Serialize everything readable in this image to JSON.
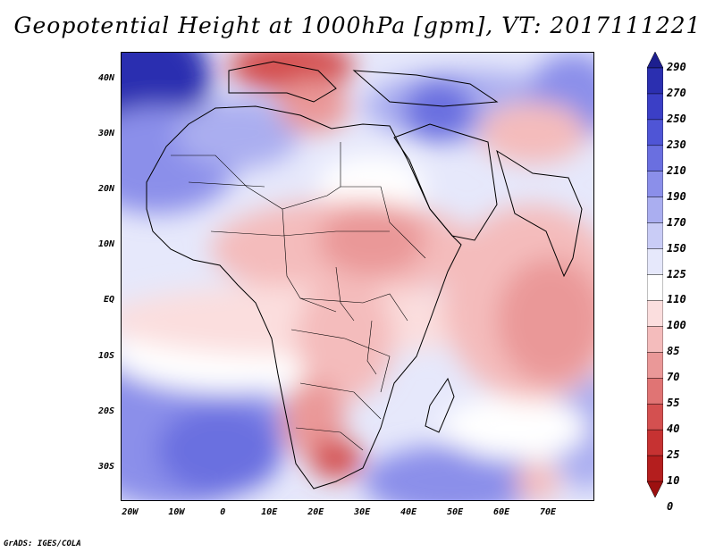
{
  "title": "Geopotential Height at 1000hPa [gpm], VT: 2017111221",
  "footer": "GrADS: IGES/COLA",
  "y_ticks": [
    {
      "label": "40N",
      "lat": 40
    },
    {
      "label": "30N",
      "lat": 30
    },
    {
      "label": "20N",
      "lat": 20
    },
    {
      "label": "10N",
      "lat": 10
    },
    {
      "label": "EQ",
      "lat": 0
    },
    {
      "label": "10S",
      "lat": -10
    },
    {
      "label": "20S",
      "lat": -20
    },
    {
      "label": "30S",
      "lat": -30
    }
  ],
  "x_ticks": [
    {
      "label": "20W",
      "lon": -20
    },
    {
      "label": "10W",
      "lon": -10
    },
    {
      "label": "0",
      "lon": 0
    },
    {
      "label": "10E",
      "lon": 10
    },
    {
      "label": "20E",
      "lon": 20
    },
    {
      "label": "30E",
      "lon": 30
    },
    {
      "label": "40E",
      "lon": 40
    },
    {
      "label": "50E",
      "lon": 50
    },
    {
      "label": "60E",
      "lon": 60
    },
    {
      "label": "70E",
      "lon": 70
    }
  ],
  "map_extent": {
    "lon": [
      -22,
      80
    ],
    "lat": [
      -36,
      45
    ]
  },
  "colorbar": {
    "levels": [
      "290",
      "270",
      "250",
      "230",
      "210",
      "190",
      "170",
      "150",
      "125",
      "110",
      "100",
      "85",
      "70",
      "55",
      "40",
      "25",
      "10",
      "0"
    ],
    "colors": [
      "#1d1f8f",
      "#2b2fb0",
      "#3b3fc6",
      "#4f55d6",
      "#6a6fe0",
      "#8b8fea",
      "#aaaef0",
      "#c9ccf6",
      "#e6e8fb",
      "#ffffff",
      "#fbdede",
      "#f4bcbc",
      "#ea9898",
      "#e07474",
      "#d45050",
      "#c63232",
      "#b41e1e",
      "#9c1010"
    ]
  }
}
